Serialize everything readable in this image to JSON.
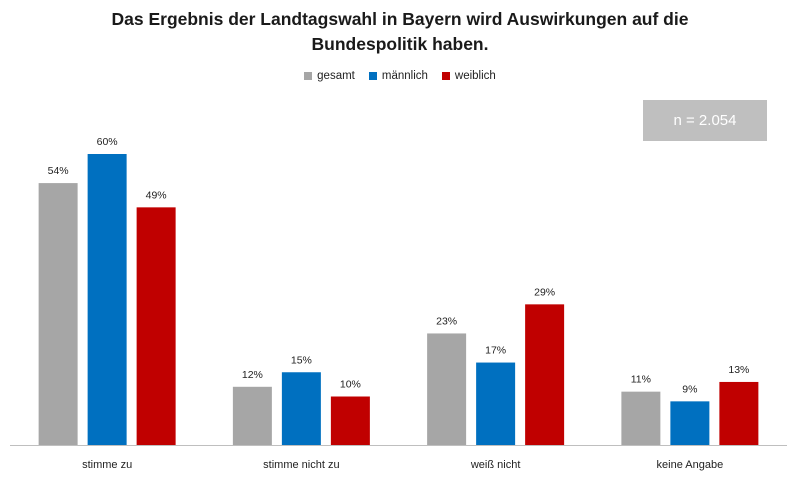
{
  "title": {
    "line1": "Das Ergebnis der Landtagswahl in Bayern wird Auswirkungen auf die",
    "line2": "Bundespolitik haben."
  },
  "sample_note": "n = 2.054",
  "colors": {
    "gesamt": "#a6a6a6",
    "maennlich": "#0070c0",
    "weiblich": "#c00000",
    "axis": "#bfbfbf"
  },
  "chart_data": {
    "type": "bar",
    "categories": [
      "stimme zu",
      "stimme nicht zu",
      "weiß nicht",
      "keine Angabe"
    ],
    "series": [
      {
        "name": "gesamt",
        "values": [
          54,
          12,
          23,
          11
        ],
        "labels": [
          "54%",
          "12%",
          "23%",
          "11%"
        ]
      },
      {
        "name": "männlich",
        "values": [
          60,
          15,
          17,
          9
        ],
        "labels": [
          "60%",
          "15%",
          "17%",
          "9%"
        ]
      },
      {
        "name": "weiblich",
        "values": [
          49,
          10,
          29,
          13
        ],
        "labels": [
          "49%",
          "10%",
          "29%",
          "13%"
        ]
      }
    ],
    "ylim": [
      0,
      60
    ],
    "legend": "top-center",
    "grid": false
  }
}
